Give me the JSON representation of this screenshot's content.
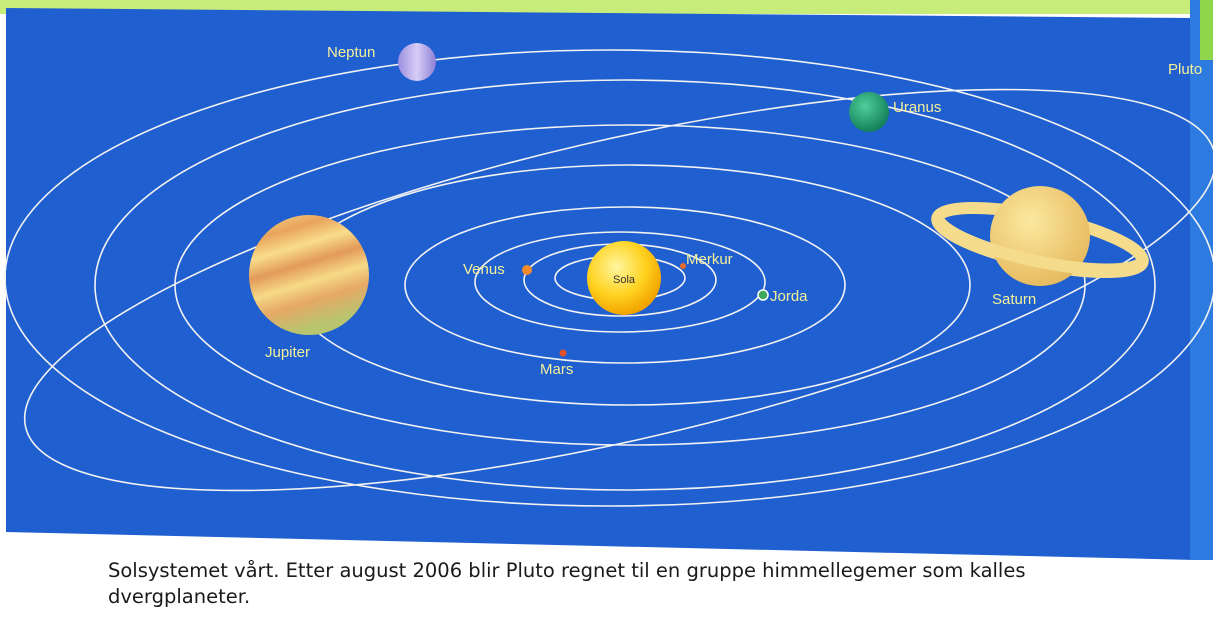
{
  "diagram": {
    "bodies": [
      {
        "label": "Sola"
      },
      {
        "label": "Merkur"
      },
      {
        "label": "Venus"
      },
      {
        "label": "Jorda"
      },
      {
        "label": "Mars"
      },
      {
        "label": "Jupiter"
      },
      {
        "label": "Saturn"
      },
      {
        "label": "Uranus"
      },
      {
        "label": "Neptun"
      },
      {
        "label": "Pluto"
      }
    ]
  },
  "caption": {
    "lines": [
      "Solsystemet vårt. Etter august 2006 blir Pluto regnet til en gruppe himmellegemer som kalles",
      "dvergplaneter."
    ]
  }
}
